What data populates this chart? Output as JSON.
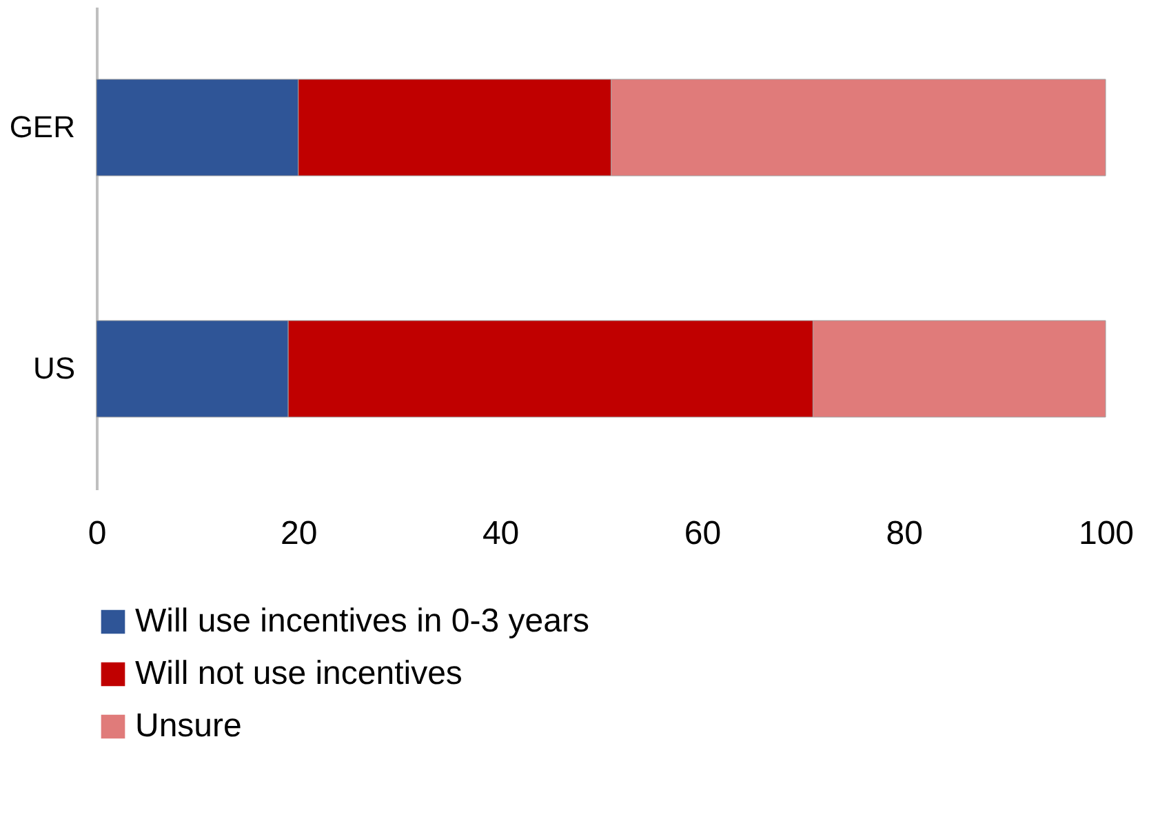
{
  "chart_data": {
    "type": "bar",
    "orientation": "horizontal",
    "stacked": true,
    "categories": [
      "GER",
      "US"
    ],
    "series": [
      {
        "name": "Will use incentives in 0-3 years",
        "color": "#2f5597",
        "values": [
          20,
          19
        ]
      },
      {
        "name": "Will not use incentives",
        "color": "#c00000",
        "values": [
          31,
          52
        ]
      },
      {
        "name": "Unsure",
        "color": "#e07b7a",
        "values": [
          49,
          29
        ]
      }
    ],
    "xlim": [
      0,
      100
    ],
    "xticks": [
      0,
      20,
      40,
      60,
      80,
      100
    ],
    "grid": false,
    "legend": "bottom"
  }
}
